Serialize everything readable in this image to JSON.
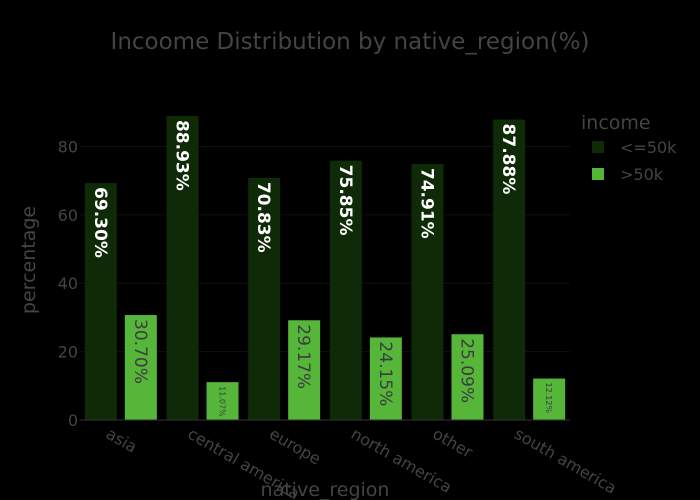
{
  "chart_data": {
    "type": "bar",
    "title": "Incoome Distribution by native_region(%)",
    "xlabel": "native_region",
    "ylabel": "percentage",
    "categories": [
      "asia",
      "central america",
      "europe",
      "north america",
      "other",
      "south america"
    ],
    "series": [
      {
        "name": "<=50k",
        "color": "#0f2a06",
        "values": [
          69.3,
          88.93,
          70.83,
          75.85,
          74.91,
          87.88
        ],
        "labels": [
          "69.30%",
          "88.93%",
          "70.83%",
          "75.85%",
          "74.91%",
          "87.88%"
        ]
      },
      {
        "name": ">50k",
        "color": "#55b63a",
        "values": [
          30.7,
          11.07,
          29.17,
          24.15,
          25.09,
          12.12
        ],
        "labels": [
          "30.70%",
          "11.07%",
          "29.17%",
          "24.15%",
          "25.09%",
          "12.12%"
        ]
      }
    ],
    "yticks": [
      0,
      20,
      40,
      60,
      80
    ],
    "ylim": [
      0,
      93.6
    ],
    "legend": {
      "title": "income",
      "position": "top-right"
    },
    "grid": true,
    "colors": {
      "background": "#000000",
      "text": "#444444",
      "grid": "#111111",
      "label_on_dark": "#ffffff",
      "label_on_light": "#3d3d3d"
    }
  }
}
